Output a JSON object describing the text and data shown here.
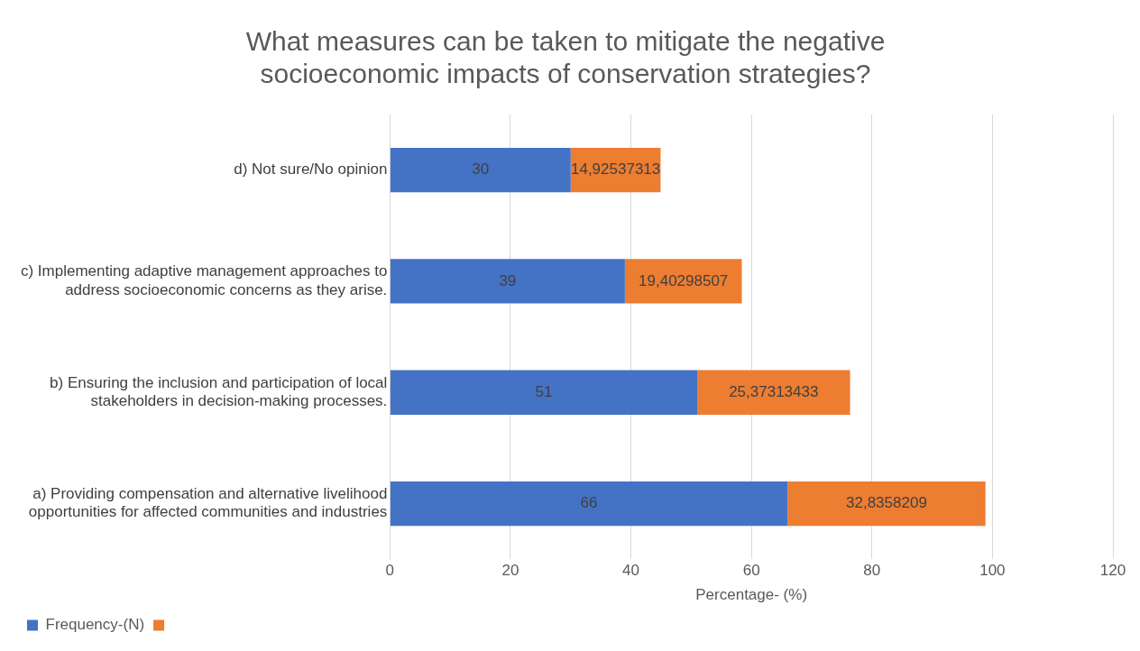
{
  "chart_data": {
    "type": "bar",
    "orientation": "horizontal",
    "stacked": true,
    "title": "What measures can be taken to mitigate the negative socioeconomic impacts of conservation strategies?",
    "xlabel": "Percentage- (%)",
    "categories": [
      "d) Not sure/No opinion",
      "c) Implementing adaptive management approaches to address socioeconomic concerns as they arise.",
      "b) Ensuring the inclusion and participation of local stakeholders in decision-making processes.",
      "a) Providing compensation and alternative livelihood opportunities for affected communities and industries"
    ],
    "series": [
      {
        "name": "Frequency-(N)",
        "color": "#4472c4",
        "values": [
          30,
          39,
          51,
          66
        ],
        "value_labels": [
          "30",
          "39",
          "51",
          "66"
        ]
      },
      {
        "color": "#ed7d31",
        "values": [
          14.92537313,
          19.40298507,
          25.37313433,
          32.8358209
        ],
        "value_labels": [
          "14,92537313",
          "19,40298507",
          "25,37313433",
          "32,8358209"
        ]
      }
    ],
    "xlim": [
      0,
      120
    ],
    "xticks": [
      0,
      20,
      40,
      60,
      80,
      100,
      120
    ],
    "grid": "x",
    "legend": "bottom left"
  }
}
